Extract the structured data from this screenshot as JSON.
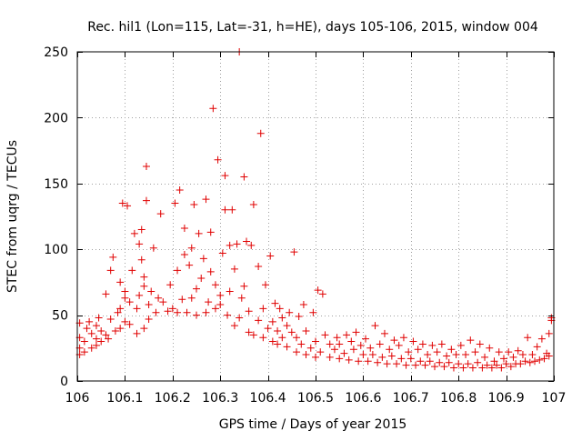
{
  "chart_data": {
    "type": "scatter",
    "title": "Rec. hil1 (Lon=115, Lat=-31, h=HE), days 105-106, 2015, window 004",
    "xlabel": "GPS time / Days of year 2015",
    "ylabel": "STEC from uqrg / TECUs",
    "xlim": [
      106,
      107
    ],
    "ylim": [
      0,
      250
    ],
    "xticks": [
      106,
      106.1,
      106.2,
      106.3,
      106.4,
      106.5,
      106.6,
      106.7,
      106.8,
      106.9,
      107
    ],
    "xtick_labels": [
      "106",
      "106.1",
      "106.2",
      "106.3",
      "106.4",
      "106.5",
      "106.6",
      "106.7",
      "106.8",
      "106.9",
      "107"
    ],
    "yticks": [
      0,
      50,
      100,
      150,
      200,
      250
    ],
    "ytick_labels": [
      "0",
      "50",
      "100",
      "150",
      "200",
      "250"
    ],
    "grid": true,
    "marker": "+",
    "marker_color": "#e00000",
    "series": [
      {
        "points": [
          [
            106.005,
            20
          ],
          [
            106.005,
            25
          ],
          [
            106.005,
            33
          ],
          [
            106.005,
            44
          ],
          [
            106.015,
            22
          ],
          [
            106.015,
            30
          ],
          [
            106.02,
            40
          ],
          [
            106.025,
            45
          ],
          [
            106.03,
            25
          ],
          [
            106.03,
            36
          ],
          [
            106.04,
            27
          ],
          [
            106.04,
            32
          ],
          [
            106.04,
            42
          ],
          [
            106.045,
            48
          ],
          [
            106.05,
            30
          ],
          [
            106.05,
            38
          ],
          [
            106.06,
            35
          ],
          [
            106.06,
            66
          ],
          [
            106.065,
            32
          ],
          [
            106.07,
            47
          ],
          [
            106.07,
            84
          ],
          [
            106.075,
            94
          ],
          [
            106.08,
            38
          ],
          [
            106.085,
            52
          ],
          [
            106.09,
            40
          ],
          [
            106.09,
            55
          ],
          [
            106.09,
            75
          ],
          [
            106.095,
            135
          ],
          [
            106.1,
            45
          ],
          [
            106.1,
            63
          ],
          [
            106.1,
            68
          ],
          [
            106.105,
            133
          ],
          [
            106.11,
            43
          ],
          [
            106.11,
            60
          ],
          [
            106.115,
            84
          ],
          [
            106.12,
            112
          ],
          [
            106.125,
            36
          ],
          [
            106.125,
            55
          ],
          [
            106.13,
            65
          ],
          [
            106.13,
            104
          ],
          [
            106.135,
            115
          ],
          [
            106.135,
            92
          ],
          [
            106.14,
            40
          ],
          [
            106.14,
            72
          ],
          [
            106.14,
            79
          ],
          [
            106.145,
            137
          ],
          [
            106.145,
            163
          ],
          [
            106.15,
            47
          ],
          [
            106.15,
            58
          ],
          [
            106.155,
            68
          ],
          [
            106.16,
            101
          ],
          [
            106.165,
            52
          ],
          [
            106.17,
            63
          ],
          [
            106.175,
            127
          ],
          [
            106.18,
            60
          ],
          [
            106.19,
            53
          ],
          [
            106.195,
            73
          ],
          [
            106.2,
            55
          ],
          [
            106.205,
            135
          ],
          [
            106.21,
            52
          ],
          [
            106.21,
            84
          ],
          [
            106.215,
            145
          ],
          [
            106.22,
            62
          ],
          [
            106.225,
            96
          ],
          [
            106.225,
            116
          ],
          [
            106.23,
            52
          ],
          [
            106.235,
            88
          ],
          [
            106.24,
            63
          ],
          [
            106.24,
            101
          ],
          [
            106.245,
            134
          ],
          [
            106.25,
            50
          ],
          [
            106.25,
            70
          ],
          [
            106.255,
            112
          ],
          [
            106.26,
            78
          ],
          [
            106.265,
            93
          ],
          [
            106.27,
            52
          ],
          [
            106.27,
            138
          ],
          [
            106.275,
            60
          ],
          [
            106.28,
            83
          ],
          [
            106.28,
            113
          ],
          [
            106.285,
            207
          ],
          [
            106.29,
            55
          ],
          [
            106.29,
            73
          ],
          [
            106.295,
            168
          ],
          [
            106.3,
            58
          ],
          [
            106.3,
            65
          ],
          [
            106.305,
            97
          ],
          [
            106.31,
            130
          ],
          [
            106.31,
            156
          ],
          [
            106.315,
            50
          ],
          [
            106.32,
            68
          ],
          [
            106.32,
            103
          ],
          [
            106.325,
            130
          ],
          [
            106.33,
            42
          ],
          [
            106.33,
            85
          ],
          [
            106.335,
            104
          ],
          [
            106.34,
            250
          ],
          [
            106.34,
            48
          ],
          [
            106.345,
            63
          ],
          [
            106.35,
            72
          ],
          [
            106.35,
            155
          ],
          [
            106.355,
            106
          ],
          [
            106.36,
            37
          ],
          [
            106.36,
            53
          ],
          [
            106.365,
            103
          ],
          [
            106.37,
            134
          ],
          [
            106.37,
            35
          ],
          [
            106.38,
            46
          ],
          [
            106.38,
            87
          ],
          [
            106.385,
            188
          ],
          [
            106.39,
            33
          ],
          [
            106.39,
            55
          ],
          [
            106.395,
            73
          ],
          [
            106.4,
            40
          ],
          [
            106.405,
            95
          ],
          [
            106.41,
            30
          ],
          [
            106.41,
            45
          ],
          [
            106.415,
            59
          ],
          [
            106.42,
            28
          ],
          [
            106.42,
            38
          ],
          [
            106.425,
            55
          ],
          [
            106.43,
            33
          ],
          [
            106.43,
            48
          ],
          [
            106.44,
            26
          ],
          [
            106.44,
            42
          ],
          [
            106.445,
            52
          ],
          [
            106.45,
            37
          ],
          [
            106.455,
            98
          ],
          [
            106.46,
            22
          ],
          [
            106.46,
            33
          ],
          [
            106.465,
            49
          ],
          [
            106.47,
            28
          ],
          [
            106.475,
            58
          ],
          [
            106.48,
            20
          ],
          [
            106.48,
            38
          ],
          [
            106.49,
            25
          ],
          [
            106.495,
            52
          ],
          [
            106.5,
            18
          ],
          [
            106.5,
            30
          ],
          [
            106.505,
            69
          ],
          [
            106.51,
            22
          ],
          [
            106.515,
            66
          ],
          [
            106.52,
            35
          ],
          [
            106.53,
            18
          ],
          [
            106.53,
            28
          ],
          [
            106.54,
            24
          ],
          [
            106.545,
            33
          ],
          [
            106.55,
            17
          ],
          [
            106.55,
            28
          ],
          [
            106.56,
            21
          ],
          [
            106.565,
            35
          ],
          [
            106.57,
            16
          ],
          [
            106.575,
            30
          ],
          [
            106.58,
            24
          ],
          [
            106.585,
            37
          ],
          [
            106.59,
            15
          ],
          [
            106.595,
            27
          ],
          [
            106.6,
            20
          ],
          [
            106.605,
            32
          ],
          [
            106.61,
            15
          ],
          [
            106.615,
            25
          ],
          [
            106.62,
            20
          ],
          [
            106.625,
            42
          ],
          [
            106.63,
            14
          ],
          [
            106.635,
            28
          ],
          [
            106.64,
            18
          ],
          [
            106.645,
            36
          ],
          [
            106.65,
            13
          ],
          [
            106.655,
            24
          ],
          [
            106.66,
            19
          ],
          [
            106.665,
            31
          ],
          [
            106.67,
            13
          ],
          [
            106.675,
            27
          ],
          [
            106.68,
            17
          ],
          [
            106.685,
            33
          ],
          [
            106.69,
            12
          ],
          [
            106.695,
            22
          ],
          [
            106.7,
            17
          ],
          [
            106.705,
            30
          ],
          [
            106.71,
            12
          ],
          [
            106.715,
            24
          ],
          [
            106.72,
            15
          ],
          [
            106.725,
            28
          ],
          [
            106.73,
            12
          ],
          [
            106.735,
            20
          ],
          [
            106.74,
            15
          ],
          [
            106.745,
            27
          ],
          [
            106.75,
            11
          ],
          [
            106.755,
            22
          ],
          [
            106.76,
            14
          ],
          [
            106.765,
            28
          ],
          [
            106.77,
            11
          ],
          [
            106.775,
            19
          ],
          [
            106.78,
            14
          ],
          [
            106.785,
            24
          ],
          [
            106.79,
            10
          ],
          [
            106.795,
            20
          ],
          [
            106.8,
            13
          ],
          [
            106.805,
            27
          ],
          [
            106.81,
            10
          ],
          [
            106.815,
            20
          ],
          [
            106.82,
            13
          ],
          [
            106.825,
            31
          ],
          [
            106.83,
            10
          ],
          [
            106.835,
            22
          ],
          [
            106.84,
            14
          ],
          [
            106.845,
            28
          ],
          [
            106.85,
            10
          ],
          [
            106.855,
            18
          ],
          [
            106.86,
            12
          ],
          [
            106.865,
            25
          ],
          [
            106.87,
            10
          ],
          [
            106.875,
            15
          ],
          [
            106.88,
            12
          ],
          [
            106.885,
            22
          ],
          [
            106.89,
            10
          ],
          [
            106.895,
            17
          ],
          [
            106.9,
            13
          ],
          [
            106.905,
            22
          ],
          [
            106.91,
            11
          ],
          [
            106.915,
            18
          ],
          [
            106.92,
            13
          ],
          [
            106.925,
            23
          ],
          [
            106.93,
            13
          ],
          [
            106.935,
            20
          ],
          [
            106.94,
            15
          ],
          [
            106.945,
            33
          ],
          [
            106.95,
            14
          ],
          [
            106.955,
            20
          ],
          [
            106.96,
            15
          ],
          [
            106.965,
            26
          ],
          [
            106.97,
            16
          ],
          [
            106.975,
            32
          ],
          [
            106.98,
            17
          ],
          [
            106.985,
            21
          ],
          [
            106.99,
            19
          ],
          [
            106.99,
            36
          ],
          [
            106.995,
            46
          ],
          [
            106.995,
            48
          ]
        ]
      }
    ]
  }
}
